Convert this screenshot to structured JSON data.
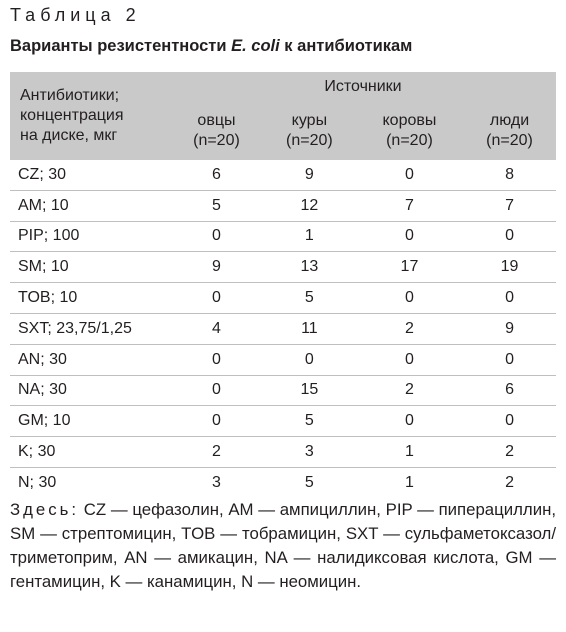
{
  "header": {
    "label": "Таблица 2",
    "title_start": "Варианты резистентности ",
    "title_italic": "E. coli",
    "title_end": " к антибиотикам"
  },
  "table": {
    "corner": [
      "Антибиотики;",
      "концентрация",
      "на диске, мкг"
    ],
    "group": "Источники",
    "columns": [
      [
        "овцы",
        "(n=20)"
      ],
      [
        "куры",
        "(n=20)"
      ],
      [
        "коровы",
        "(n=20)"
      ],
      [
        "люди",
        "(n=20)"
      ]
    ],
    "rows": [
      [
        "CZ; 30",
        6,
        9,
        0,
        8
      ],
      [
        "AM; 10",
        5,
        12,
        7,
        7
      ],
      [
        "PIP; 100",
        0,
        1,
        0,
        0
      ],
      [
        "SM; 10",
        9,
        13,
        17,
        19
      ],
      [
        "TOB; 10",
        0,
        5,
        0,
        0
      ],
      [
        "SXT; 23,75/1,25",
        4,
        11,
        2,
        9
      ],
      [
        "AN; 30",
        0,
        0,
        0,
        0
      ],
      [
        "NA; 30",
        0,
        15,
        2,
        6
      ],
      [
        "GM; 10",
        0,
        5,
        0,
        0
      ],
      [
        "K; 30",
        2,
        3,
        1,
        2
      ],
      [
        "N; 30",
        3,
        5,
        1,
        2
      ]
    ]
  },
  "note": {
    "label": "Здесь:",
    "text": "CZ — цефазолин, AM — ампициллин, PIP — пиперациллин, SM — стрептомицин, TOB — тобрамицин, SXT — сульфаметоксазол/триметоприм, AN — амикацин, NA — налидиксовая кислота, GM — гентамицин, K — канамицин,  N — неомицин."
  }
}
